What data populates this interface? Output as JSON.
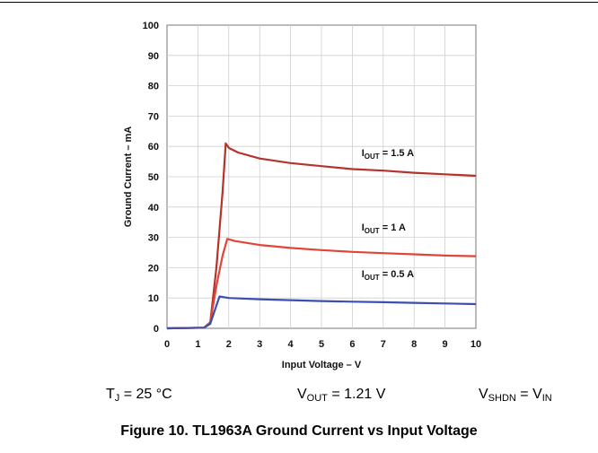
{
  "conditions": {
    "tj": {
      "symbol": "T",
      "sub": "J",
      "value": " = 25 °C"
    },
    "vout": {
      "symbol": "V",
      "sub": "OUT",
      "value": " = 1.21 V"
    },
    "vshdn": {
      "symbol": "V",
      "sub": "SHDN",
      "value": " = V",
      "value_sub": "IN"
    }
  },
  "caption": "Figure 10. TL1963A Ground Current vs Input Voltage",
  "chart_data": {
    "type": "line",
    "xlabel": "Input Voltage – V",
    "ylabel": "Ground Current – mA",
    "xlim": [
      0,
      10
    ],
    "ylim": [
      0,
      100
    ],
    "xticks": [
      0,
      1,
      2,
      3,
      4,
      5,
      6,
      7,
      8,
      9,
      10
    ],
    "yticks": [
      0,
      10,
      20,
      30,
      40,
      50,
      60,
      70,
      80,
      90,
      100
    ],
    "grid": true,
    "series": [
      {
        "name": "IOUT = 1.5 A",
        "label_main": "I",
        "label_sub": "OUT",
        "label_rest": " = 1.5 A",
        "color": "#b5332b",
        "x": [
          0,
          1.2,
          1.4,
          1.6,
          1.8,
          1.9,
          2.0,
          2.3,
          3,
          4,
          5,
          6,
          7,
          8,
          9,
          10
        ],
        "y": [
          0,
          0.2,
          2,
          20,
          45,
          61,
          59.5,
          58,
          56,
          54.5,
          53.5,
          52.5,
          52,
          51.3,
          50.8,
          50.3
        ]
      },
      {
        "name": "IOUT = 1 A",
        "label_main": "I",
        "label_sub": "OUT",
        "label_rest": " = 1 A",
        "color": "#e0453a",
        "x": [
          0,
          1.2,
          1.4,
          1.6,
          1.8,
          1.95,
          2.2,
          3,
          4,
          5,
          6,
          7,
          8,
          9,
          10
        ],
        "y": [
          0,
          0.2,
          2,
          14,
          24,
          29.5,
          28.8,
          27.5,
          26.5,
          25.8,
          25.2,
          24.8,
          24.4,
          24,
          23.8
        ]
      },
      {
        "name": "IOUT = 0.5 A",
        "label_main": "I",
        "label_sub": "OUT",
        "label_rest": " = 0.5 A",
        "color": "#3a4fb0",
        "x": [
          0,
          1.2,
          1.4,
          1.55,
          1.7,
          2.0,
          3,
          4,
          5,
          6,
          7,
          8,
          9,
          10
        ],
        "y": [
          0,
          0.2,
          1.5,
          6,
          10.5,
          10,
          9.6,
          9.3,
          9,
          8.8,
          8.6,
          8.4,
          8.2,
          8
        ]
      }
    ],
    "annotations": [
      {
        "series": 0,
        "x": 6.3,
        "y": 56.8
      },
      {
        "series": 1,
        "x": 6.3,
        "y": 32.2
      },
      {
        "series": 2,
        "x": 6.3,
        "y": 16.8
      }
    ]
  }
}
